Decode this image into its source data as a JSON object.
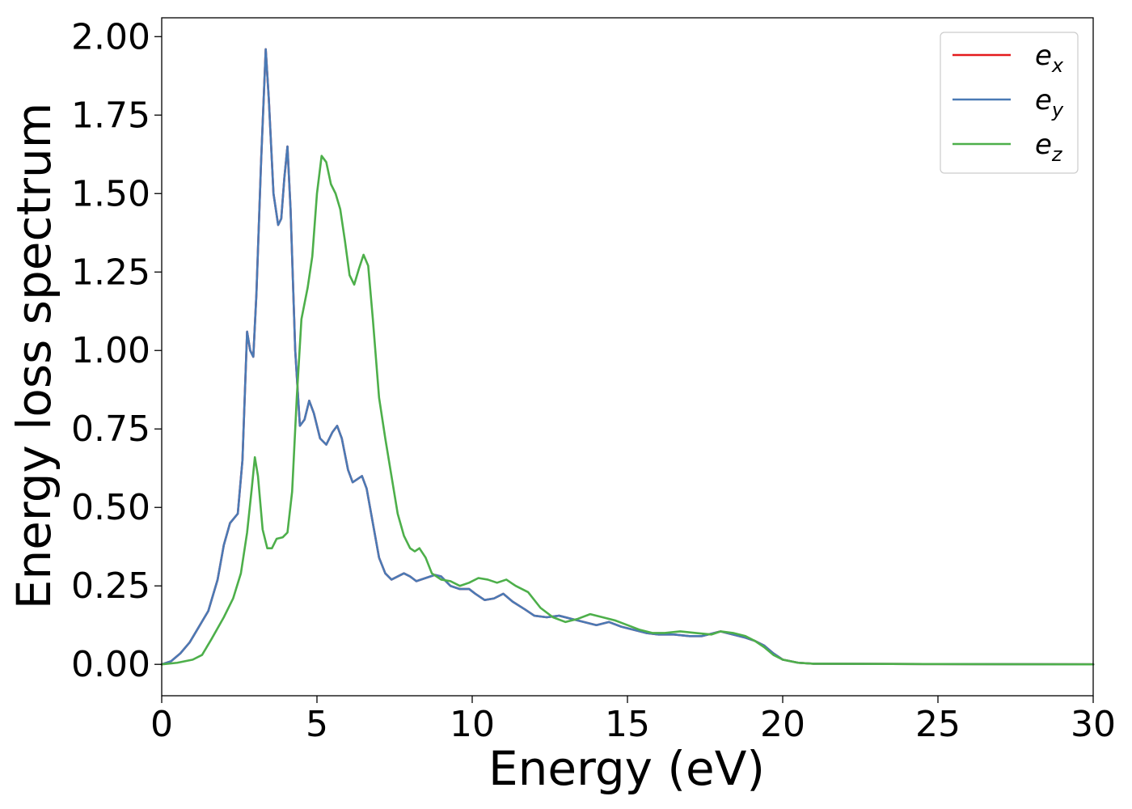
{
  "chart_data": {
    "type": "line",
    "title": "",
    "xlabel": "Energy (eV)",
    "ylabel": "Energy loss spectrum",
    "xlim": [
      0,
      30
    ],
    "ylim": [
      -0.1,
      2.06
    ],
    "grid": false,
    "legend_position": "top-right",
    "x_ticks": [
      0,
      5,
      10,
      15,
      20,
      25,
      30
    ],
    "x_tick_labels": [
      "0",
      "5",
      "10",
      "15",
      "20",
      "25",
      "30"
    ],
    "y_ticks": [
      0,
      0.25,
      0.5,
      0.75,
      1.0,
      1.25,
      1.5,
      1.75,
      2.0
    ],
    "y_tick_labels": [
      "0.00",
      "0.25",
      "0.50",
      "0.75",
      "1.00",
      "1.25",
      "1.50",
      "1.75",
      "2.00"
    ],
    "series": [
      {
        "name": "e_x",
        "legend_base": "e",
        "legend_sub": "x",
        "color": "#e41a1c",
        "points": [
          [
            0,
            0
          ],
          [
            0.3,
            0.01
          ],
          [
            0.6,
            0.035
          ],
          [
            0.9,
            0.07
          ],
          [
            1.2,
            0.12
          ],
          [
            1.5,
            0.17
          ],
          [
            1.8,
            0.27
          ],
          [
            2.0,
            0.38
          ],
          [
            2.2,
            0.45
          ],
          [
            2.45,
            0.48
          ],
          [
            2.6,
            0.65
          ],
          [
            2.75,
            1.06
          ],
          [
            2.85,
            1.0
          ],
          [
            2.95,
            0.98
          ],
          [
            3.05,
            1.18
          ],
          [
            3.2,
            1.6
          ],
          [
            3.35,
            1.96
          ],
          [
            3.45,
            1.8
          ],
          [
            3.6,
            1.5
          ],
          [
            3.75,
            1.4
          ],
          [
            3.85,
            1.42
          ],
          [
            3.95,
            1.55
          ],
          [
            4.05,
            1.65
          ],
          [
            4.15,
            1.45
          ],
          [
            4.3,
            1.0
          ],
          [
            4.45,
            0.76
          ],
          [
            4.6,
            0.78
          ],
          [
            4.75,
            0.84
          ],
          [
            4.9,
            0.8
          ],
          [
            5.1,
            0.72
          ],
          [
            5.3,
            0.7
          ],
          [
            5.5,
            0.74
          ],
          [
            5.65,
            0.76
          ],
          [
            5.8,
            0.72
          ],
          [
            6.0,
            0.62
          ],
          [
            6.15,
            0.58
          ],
          [
            6.3,
            0.59
          ],
          [
            6.45,
            0.6
          ],
          [
            6.6,
            0.56
          ],
          [
            6.8,
            0.45
          ],
          [
            7.0,
            0.34
          ],
          [
            7.2,
            0.29
          ],
          [
            7.4,
            0.27
          ],
          [
            7.6,
            0.28
          ],
          [
            7.8,
            0.29
          ],
          [
            8.0,
            0.28
          ],
          [
            8.2,
            0.265
          ],
          [
            8.5,
            0.275
          ],
          [
            8.8,
            0.285
          ],
          [
            9.0,
            0.28
          ],
          [
            9.3,
            0.25
          ],
          [
            9.6,
            0.24
          ],
          [
            9.9,
            0.24
          ],
          [
            10.1,
            0.225
          ],
          [
            10.4,
            0.205
          ],
          [
            10.7,
            0.21
          ],
          [
            11.0,
            0.225
          ],
          [
            11.3,
            0.2
          ],
          [
            11.7,
            0.175
          ],
          [
            12.0,
            0.155
          ],
          [
            12.4,
            0.15
          ],
          [
            12.8,
            0.155
          ],
          [
            13.2,
            0.145
          ],
          [
            13.6,
            0.135
          ],
          [
            14.0,
            0.125
          ],
          [
            14.4,
            0.135
          ],
          [
            14.8,
            0.12
          ],
          [
            15.2,
            0.11
          ],
          [
            15.6,
            0.1
          ],
          [
            16.0,
            0.095
          ],
          [
            16.5,
            0.095
          ],
          [
            17.0,
            0.09
          ],
          [
            17.4,
            0.09
          ],
          [
            17.8,
            0.1
          ],
          [
            18.0,
            0.105
          ],
          [
            18.4,
            0.095
          ],
          [
            18.8,
            0.085
          ],
          [
            19.1,
            0.075
          ],
          [
            19.4,
            0.06
          ],
          [
            19.7,
            0.035
          ],
          [
            20.0,
            0.015
          ],
          [
            20.5,
            0.005
          ],
          [
            21.0,
            0.002
          ],
          [
            25.0,
            0.001
          ],
          [
            30.0,
            0.0
          ]
        ]
      },
      {
        "name": "e_y",
        "legend_base": "e",
        "legend_sub": "y",
        "color": "#4a7ab5",
        "points": [
          [
            0,
            0
          ],
          [
            0.3,
            0.01
          ],
          [
            0.6,
            0.035
          ],
          [
            0.9,
            0.07
          ],
          [
            1.2,
            0.12
          ],
          [
            1.5,
            0.17
          ],
          [
            1.8,
            0.27
          ],
          [
            2.0,
            0.38
          ],
          [
            2.2,
            0.45
          ],
          [
            2.45,
            0.48
          ],
          [
            2.6,
            0.65
          ],
          [
            2.75,
            1.06
          ],
          [
            2.85,
            1.0
          ],
          [
            2.95,
            0.98
          ],
          [
            3.05,
            1.18
          ],
          [
            3.2,
            1.6
          ],
          [
            3.35,
            1.96
          ],
          [
            3.45,
            1.8
          ],
          [
            3.6,
            1.5
          ],
          [
            3.75,
            1.4
          ],
          [
            3.85,
            1.42
          ],
          [
            3.95,
            1.55
          ],
          [
            4.05,
            1.65
          ],
          [
            4.15,
            1.45
          ],
          [
            4.3,
            1.0
          ],
          [
            4.45,
            0.76
          ],
          [
            4.6,
            0.78
          ],
          [
            4.75,
            0.84
          ],
          [
            4.9,
            0.8
          ],
          [
            5.1,
            0.72
          ],
          [
            5.3,
            0.7
          ],
          [
            5.5,
            0.74
          ],
          [
            5.65,
            0.76
          ],
          [
            5.8,
            0.72
          ],
          [
            6.0,
            0.62
          ],
          [
            6.15,
            0.58
          ],
          [
            6.3,
            0.59
          ],
          [
            6.45,
            0.6
          ],
          [
            6.6,
            0.56
          ],
          [
            6.8,
            0.45
          ],
          [
            7.0,
            0.34
          ],
          [
            7.2,
            0.29
          ],
          [
            7.4,
            0.27
          ],
          [
            7.6,
            0.28
          ],
          [
            7.8,
            0.29
          ],
          [
            8.0,
            0.28
          ],
          [
            8.2,
            0.265
          ],
          [
            8.5,
            0.275
          ],
          [
            8.8,
            0.285
          ],
          [
            9.0,
            0.28
          ],
          [
            9.3,
            0.25
          ],
          [
            9.6,
            0.24
          ],
          [
            9.9,
            0.24
          ],
          [
            10.1,
            0.225
          ],
          [
            10.4,
            0.205
          ],
          [
            10.7,
            0.21
          ],
          [
            11.0,
            0.225
          ],
          [
            11.3,
            0.2
          ],
          [
            11.7,
            0.175
          ],
          [
            12.0,
            0.155
          ],
          [
            12.4,
            0.15
          ],
          [
            12.8,
            0.155
          ],
          [
            13.2,
            0.145
          ],
          [
            13.6,
            0.135
          ],
          [
            14.0,
            0.125
          ],
          [
            14.4,
            0.135
          ],
          [
            14.8,
            0.12
          ],
          [
            15.2,
            0.11
          ],
          [
            15.6,
            0.1
          ],
          [
            16.0,
            0.095
          ],
          [
            16.5,
            0.095
          ],
          [
            17.0,
            0.09
          ],
          [
            17.4,
            0.09
          ],
          [
            17.8,
            0.1
          ],
          [
            18.0,
            0.105
          ],
          [
            18.4,
            0.095
          ],
          [
            18.8,
            0.085
          ],
          [
            19.1,
            0.075
          ],
          [
            19.4,
            0.06
          ],
          [
            19.7,
            0.035
          ],
          [
            20.0,
            0.015
          ],
          [
            20.5,
            0.005
          ],
          [
            21.0,
            0.002
          ],
          [
            25.0,
            0.001
          ],
          [
            30.0,
            0.0
          ]
        ]
      },
      {
        "name": "e_z",
        "legend_base": "e",
        "legend_sub": "z",
        "color": "#4daf4a",
        "points": [
          [
            0,
            0
          ],
          [
            0.5,
            0.005
          ],
          [
            1.0,
            0.015
          ],
          [
            1.3,
            0.03
          ],
          [
            1.6,
            0.08
          ],
          [
            2.0,
            0.15
          ],
          [
            2.3,
            0.21
          ],
          [
            2.55,
            0.29
          ],
          [
            2.75,
            0.42
          ],
          [
            2.9,
            0.56
          ],
          [
            3.0,
            0.66
          ],
          [
            3.1,
            0.6
          ],
          [
            3.25,
            0.43
          ],
          [
            3.4,
            0.37
          ],
          [
            3.55,
            0.37
          ],
          [
            3.7,
            0.4
          ],
          [
            3.9,
            0.405
          ],
          [
            4.05,
            0.42
          ],
          [
            4.2,
            0.55
          ],
          [
            4.35,
            0.85
          ],
          [
            4.5,
            1.1
          ],
          [
            4.7,
            1.2
          ],
          [
            4.85,
            1.3
          ],
          [
            5.0,
            1.5
          ],
          [
            5.15,
            1.62
          ],
          [
            5.3,
            1.6
          ],
          [
            5.45,
            1.53
          ],
          [
            5.6,
            1.5
          ],
          [
            5.75,
            1.45
          ],
          [
            5.9,
            1.35
          ],
          [
            6.05,
            1.24
          ],
          [
            6.2,
            1.21
          ],
          [
            6.35,
            1.26
          ],
          [
            6.5,
            1.305
          ],
          [
            6.65,
            1.27
          ],
          [
            6.8,
            1.1
          ],
          [
            7.0,
            0.85
          ],
          [
            7.2,
            0.72
          ],
          [
            7.4,
            0.6
          ],
          [
            7.6,
            0.48
          ],
          [
            7.8,
            0.41
          ],
          [
            8.0,
            0.37
          ],
          [
            8.15,
            0.36
          ],
          [
            8.3,
            0.37
          ],
          [
            8.5,
            0.34
          ],
          [
            8.7,
            0.29
          ],
          [
            9.0,
            0.27
          ],
          [
            9.3,
            0.265
          ],
          [
            9.6,
            0.25
          ],
          [
            9.9,
            0.26
          ],
          [
            10.2,
            0.275
          ],
          [
            10.5,
            0.27
          ],
          [
            10.8,
            0.26
          ],
          [
            11.1,
            0.27
          ],
          [
            11.4,
            0.25
          ],
          [
            11.8,
            0.23
          ],
          [
            12.2,
            0.18
          ],
          [
            12.6,
            0.15
          ],
          [
            13.0,
            0.135
          ],
          [
            13.4,
            0.145
          ],
          [
            13.8,
            0.16
          ],
          [
            14.2,
            0.15
          ],
          [
            14.6,
            0.14
          ],
          [
            15.0,
            0.125
          ],
          [
            15.4,
            0.11
          ],
          [
            15.8,
            0.1
          ],
          [
            16.2,
            0.1
          ],
          [
            16.7,
            0.105
          ],
          [
            17.2,
            0.1
          ],
          [
            17.7,
            0.095
          ],
          [
            18.0,
            0.105
          ],
          [
            18.4,
            0.1
          ],
          [
            18.8,
            0.09
          ],
          [
            19.1,
            0.075
          ],
          [
            19.4,
            0.055
          ],
          [
            19.7,
            0.03
          ],
          [
            20.0,
            0.015
          ],
          [
            20.5,
            0.005
          ],
          [
            21.0,
            0.002
          ],
          [
            25.0,
            0.001
          ],
          [
            30.0,
            0.0
          ]
        ]
      }
    ]
  }
}
